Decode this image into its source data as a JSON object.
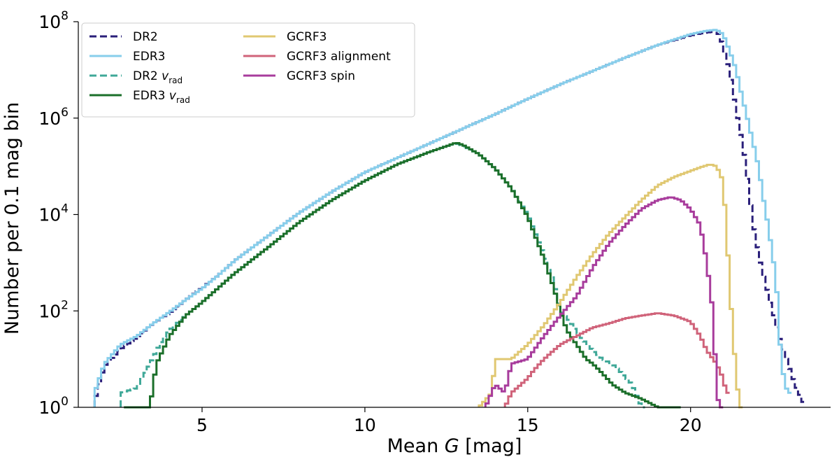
{
  "chart_data": {
    "type": "line",
    "subtype": "step-histogram",
    "title": "",
    "xlabel": "Mean G [mag]",
    "ylabel": "Number per 0.1 mag bin",
    "yscale": "log",
    "xlim": [
      1.2,
      24.3
    ],
    "ylim": [
      1,
      100000000
    ],
    "xticks": [
      5,
      10,
      15,
      20
    ],
    "xtick_labels": [
      "5",
      "10",
      "15",
      "20"
    ],
    "yticks": [
      1,
      100,
      10000,
      1000000,
      100000000
    ],
    "ytick_labels": [
      {
        "base": "10",
        "exp": "0"
      },
      {
        "base": "10",
        "exp": "2"
      },
      {
        "base": "10",
        "exp": "4"
      },
      {
        "base": "10",
        "exp": "6"
      },
      {
        "base": "10",
        "exp": "8"
      }
    ],
    "legend_position": "top-left",
    "legend_columns": 2,
    "series": [
      {
        "key": "dr2",
        "name": "DR2",
        "subscript": "",
        "color": "#2a1f7a",
        "dashed": true,
        "width": 3,
        "points": [
          [
            1.7,
            1.3
          ],
          [
            2.0,
            7
          ],
          [
            2.5,
            16
          ],
          [
            3.0,
            28
          ],
          [
            3.5,
            55
          ],
          [
            4.0,
            90
          ],
          [
            4.5,
            170
          ],
          [
            5.0,
            300
          ],
          [
            5.5,
            550
          ],
          [
            6.0,
            1100
          ],
          [
            7.0,
            3500
          ],
          [
            8.0,
            11000
          ],
          [
            9.0,
            30000
          ],
          [
            10.0,
            75000
          ],
          [
            11.0,
            150000
          ],
          [
            12.0,
            300000
          ],
          [
            13.0,
            600000
          ],
          [
            14.0,
            1200000
          ],
          [
            15.0,
            2500000
          ],
          [
            16.0,
            5000000
          ],
          [
            17.0,
            9500000
          ],
          [
            18.0,
            18000000
          ],
          [
            19.0,
            33000000
          ],
          [
            20.0,
            52000000
          ],
          [
            20.5,
            60000000
          ],
          [
            20.8,
            62000000
          ],
          [
            20.9,
            50000000
          ],
          [
            21.0,
            30000000
          ],
          [
            21.2,
            10000000
          ],
          [
            21.4,
            1500000
          ],
          [
            21.6,
            300000
          ],
          [
            21.7,
            100000
          ],
          [
            21.8,
            30000
          ],
          [
            21.9,
            8000
          ],
          [
            22.0,
            3000
          ],
          [
            22.2,
            700
          ],
          [
            22.4,
            200
          ],
          [
            22.6,
            60
          ],
          [
            22.8,
            20
          ],
          [
            23.0,
            8
          ],
          [
            23.2,
            3
          ],
          [
            23.45,
            1.3
          ]
        ]
      },
      {
        "key": "edr3",
        "name": "EDR3",
        "subscript": "",
        "color": "#87ceeb",
        "dashed": false,
        "width": 3,
        "points": [
          [
            1.7,
            2
          ],
          [
            2.0,
            8
          ],
          [
            2.5,
            20
          ],
          [
            3.0,
            30
          ],
          [
            3.5,
            55
          ],
          [
            4.0,
            95
          ],
          [
            4.5,
            170
          ],
          [
            5.0,
            290
          ],
          [
            5.5,
            550
          ],
          [
            6.0,
            1100
          ],
          [
            7.0,
            3500
          ],
          [
            8.0,
            11000
          ],
          [
            9.0,
            30000
          ],
          [
            10.0,
            75000
          ],
          [
            11.0,
            150000
          ],
          [
            12.0,
            300000
          ],
          [
            13.0,
            600000
          ],
          [
            14.0,
            1200000
          ],
          [
            15.0,
            2500000
          ],
          [
            16.0,
            5000000
          ],
          [
            17.0,
            9500000
          ],
          [
            18.0,
            18000000
          ],
          [
            19.0,
            33000000
          ],
          [
            20.0,
            55000000
          ],
          [
            20.5,
            65000000
          ],
          [
            20.8,
            68000000
          ],
          [
            21.0,
            55000000
          ],
          [
            21.2,
            25000000
          ],
          [
            21.4,
            10000000
          ],
          [
            21.6,
            2500000
          ],
          [
            21.8,
            700000
          ],
          [
            22.0,
            180000
          ],
          [
            22.1,
            90000
          ],
          [
            22.2,
            30000
          ],
          [
            22.4,
            5000
          ],
          [
            22.6,
            600
          ],
          [
            22.7,
            100
          ],
          [
            22.75,
            20
          ],
          [
            22.8,
            8
          ],
          [
            22.9,
            3
          ],
          [
            23.0,
            2
          ]
        ]
      },
      {
        "key": "dr2_vrad",
        "name": "DR2 v",
        "subscript": "rad",
        "color": "#3fa898",
        "dashed": true,
        "width": 3,
        "points": [
          [
            2.5,
            2
          ],
          [
            3.0,
            2.5
          ],
          [
            3.3,
            6
          ],
          [
            3.7,
            20
          ],
          [
            4.0,
            40
          ],
          [
            4.5,
            80
          ],
          [
            5.0,
            150
          ],
          [
            5.5,
            300
          ],
          [
            6.0,
            600
          ],
          [
            7.0,
            2000
          ],
          [
            8.0,
            7000
          ],
          [
            9.0,
            20000
          ],
          [
            10.0,
            50000
          ],
          [
            11.0,
            110000
          ],
          [
            12.0,
            200000
          ],
          [
            12.5,
            260000
          ],
          [
            12.8,
            300000
          ],
          [
            13.0,
            270000
          ],
          [
            13.5,
            180000
          ],
          [
            14.0,
            90000
          ],
          [
            14.5,
            35000
          ],
          [
            15.0,
            10000
          ],
          [
            15.5,
            1500
          ],
          [
            15.8,
            400
          ],
          [
            16.0,
            100
          ],
          [
            16.3,
            60
          ],
          [
            16.6,
            30
          ],
          [
            17.0,
            15
          ],
          [
            17.3,
            10
          ],
          [
            17.6,
            8
          ],
          [
            17.9,
            5
          ],
          [
            18.2,
            3
          ],
          [
            18.5,
            1
          ]
        ]
      },
      {
        "key": "edr3_vrad",
        "name": "EDR3 v",
        "subscript": "rad",
        "color": "#1b6f2a",
        "dashed": false,
        "width": 3,
        "points": [
          [
            2.6,
            1
          ],
          [
            3.4,
            1
          ],
          [
            3.6,
            8
          ],
          [
            4.0,
            30
          ],
          [
            4.5,
            80
          ],
          [
            5.0,
            150
          ],
          [
            5.5,
            300
          ],
          [
            6.0,
            600
          ],
          [
            7.0,
            2000
          ],
          [
            8.0,
            7000
          ],
          [
            9.0,
            20000
          ],
          [
            10.0,
            50000
          ],
          [
            11.0,
            110000
          ],
          [
            12.0,
            200000
          ],
          [
            12.5,
            260000
          ],
          [
            12.8,
            310000
          ],
          [
            13.0,
            280000
          ],
          [
            13.5,
            180000
          ],
          [
            14.0,
            90000
          ],
          [
            14.5,
            35000
          ],
          [
            15.0,
            9000
          ],
          [
            15.5,
            1200
          ],
          [
            15.8,
            300
          ],
          [
            16.0,
            100
          ],
          [
            16.2,
            40
          ],
          [
            16.5,
            20
          ],
          [
            16.8,
            10
          ],
          [
            17.0,
            8
          ],
          [
            17.3,
            5
          ],
          [
            17.6,
            3
          ],
          [
            18.0,
            2
          ],
          [
            18.5,
            1.5
          ],
          [
            19.0,
            1
          ],
          [
            19.6,
            1
          ]
        ]
      },
      {
        "key": "gcrf3",
        "name": "GCRF3",
        "subscript": "",
        "color": "#e0c872",
        "dashed": false,
        "width": 3,
        "points": [
          [
            13.5,
            1
          ],
          [
            13.9,
            2
          ],
          [
            14.0,
            10
          ],
          [
            14.5,
            10
          ],
          [
            15.0,
            20
          ],
          [
            15.5,
            50
          ],
          [
            16.0,
            150
          ],
          [
            16.5,
            500
          ],
          [
            17.0,
            1500
          ],
          [
            17.5,
            4000
          ],
          [
            18.0,
            9000
          ],
          [
            18.5,
            20000
          ],
          [
            19.0,
            40000
          ],
          [
            19.5,
            60000
          ],
          [
            20.0,
            80000
          ],
          [
            20.3,
            95000
          ],
          [
            20.6,
            110000
          ],
          [
            20.8,
            100000
          ],
          [
            21.0,
            50000
          ],
          [
            21.1,
            5000
          ],
          [
            21.2,
            400
          ],
          [
            21.3,
            30
          ],
          [
            21.5,
            1
          ]
        ]
      },
      {
        "key": "gcrf3_alignment",
        "name": "GCRF3 alignment",
        "subscript": "",
        "color": "#d0637a",
        "dashed": false,
        "width": 3,
        "points": [
          [
            14.3,
            1
          ],
          [
            14.5,
            2
          ],
          [
            14.8,
            3
          ],
          [
            15.0,
            4
          ],
          [
            15.2,
            6
          ],
          [
            15.5,
            10
          ],
          [
            16.0,
            20
          ],
          [
            16.5,
            30
          ],
          [
            17.0,
            45
          ],
          [
            17.5,
            55
          ],
          [
            18.0,
            70
          ],
          [
            18.5,
            80
          ],
          [
            19.0,
            90
          ],
          [
            19.5,
            80
          ],
          [
            20.0,
            60
          ],
          [
            20.3,
            30
          ],
          [
            20.5,
            15
          ],
          [
            20.8,
            8
          ],
          [
            21.0,
            4
          ],
          [
            21.1,
            2
          ]
        ]
      },
      {
        "key": "gcrf3_spin",
        "name": "GCRF3 spin",
        "subscript": "",
        "color": "#a83c9c",
        "dashed": false,
        "width": 3,
        "points": [
          [
            13.7,
            1
          ],
          [
            14.0,
            3
          ],
          [
            14.3,
            2
          ],
          [
            14.5,
            8
          ],
          [
            15.0,
            10
          ],
          [
            15.5,
            30
          ],
          [
            16.0,
            80
          ],
          [
            16.5,
            200
          ],
          [
            17.0,
            800
          ],
          [
            17.5,
            2500
          ],
          [
            18.0,
            6000
          ],
          [
            18.5,
            13000
          ],
          [
            19.0,
            20000
          ],
          [
            19.4,
            23000
          ],
          [
            19.7,
            20000
          ],
          [
            20.0,
            13000
          ],
          [
            20.3,
            6000
          ],
          [
            20.5,
            1000
          ],
          [
            20.7,
            80
          ],
          [
            20.8,
            2
          ],
          [
            20.9,
            1
          ]
        ]
      }
    ]
  }
}
